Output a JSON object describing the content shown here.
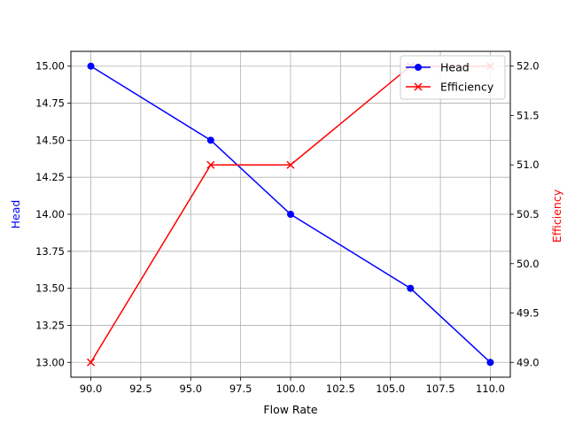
{
  "chart_data": {
    "type": "line",
    "xlabel": "Flow Rate",
    "ylabel_left": "Head",
    "ylabel_right": "Efficiency",
    "xlim": [
      89.0,
      111.0
    ],
    "ylim_left": [
      12.9,
      15.1
    ],
    "ylim_right": [
      48.85,
      52.15
    ],
    "x_ticks": [
      90.0,
      92.5,
      95.0,
      97.5,
      100.0,
      102.5,
      105.0,
      107.5,
      110.0
    ],
    "x_tick_labels": [
      "90.0",
      "92.5",
      "95.0",
      "97.5",
      "100.0",
      "102.5",
      "105.0",
      "107.5",
      "110.0"
    ],
    "y_left_ticks": [
      13.0,
      13.25,
      13.5,
      13.75,
      14.0,
      14.25,
      14.5,
      14.75,
      15.0
    ],
    "y_left_tick_labels": [
      "13.00",
      "13.25",
      "13.50",
      "13.75",
      "14.00",
      "14.25",
      "14.50",
      "14.75",
      "15.00"
    ],
    "y_right_ticks": [
      49.0,
      49.5,
      50.0,
      50.5,
      51.0,
      51.5,
      52.0
    ],
    "y_right_tick_labels": [
      "49.0",
      "49.5",
      "50.0",
      "50.5",
      "51.0",
      "51.5",
      "52.0"
    ],
    "grid": true,
    "legend_position": "top-right",
    "series": [
      {
        "name": "Head",
        "axis": "left",
        "color": "#0000ff",
        "marker": "circle",
        "x": [
          90,
          96,
          100,
          106,
          110
        ],
        "y": [
          15.0,
          14.5,
          14.0,
          13.5,
          13.0
        ]
      },
      {
        "name": "Efficiency",
        "axis": "right",
        "color": "#ff0000",
        "marker": "x",
        "x": [
          90,
          96,
          100,
          106,
          110
        ],
        "y": [
          49.0,
          51.0,
          51.0,
          52.0,
          52.0
        ]
      }
    ]
  }
}
